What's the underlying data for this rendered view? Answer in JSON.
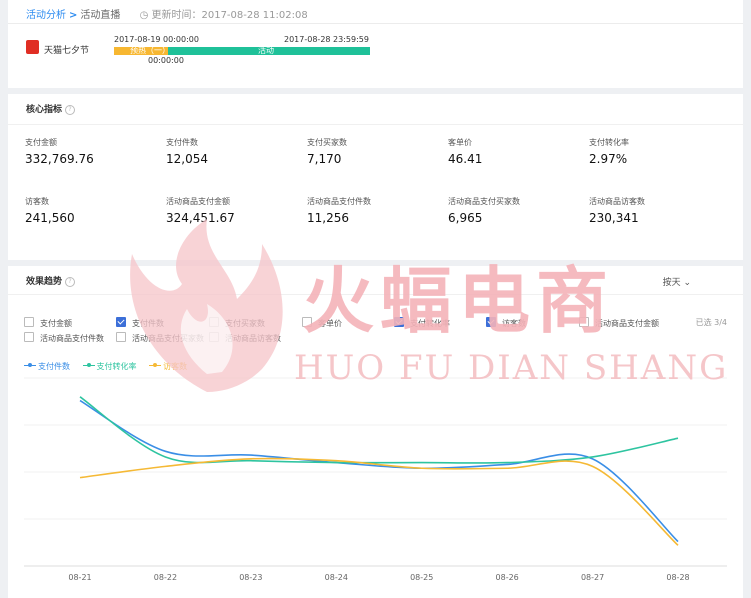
{
  "header": {
    "breadcrumb_root": "活动分析",
    "breadcrumb_separator": ">",
    "breadcrumb_current": "活动直播",
    "update_text": "更新时间：2017-08-28 11:02:08"
  },
  "event": {
    "name": "天猫七夕节",
    "start_date": "2017-08-19 00:00:00",
    "start_time_wrapped": "00:00:00",
    "end_time": "2017-08-28 23:59:59",
    "phase_pre_label": "预热（一）",
    "phase_main_label": "活动",
    "colors": {
      "pre": "#f7b731",
      "main": "#1fc199",
      "icon": "#e02e24"
    }
  },
  "core": {
    "title": "核心指标",
    "metrics": [
      {
        "label": "支付金额",
        "value": "332,769.76"
      },
      {
        "label": "支付件数",
        "value": "12,054"
      },
      {
        "label": "支付买家数",
        "value": "7,170"
      },
      {
        "label": "客单价",
        "value": "46.41"
      },
      {
        "label": "支付转化率",
        "value": "2.97%"
      },
      {
        "label": "访客数",
        "value": "241,560"
      },
      {
        "label": "活动商品支付金额",
        "value": "324,451.67"
      },
      {
        "label": "活动商品支付件数",
        "value": "11,256"
      },
      {
        "label": "活动商品支付买家数",
        "value": "6,965"
      },
      {
        "label": "活动商品访客数",
        "value": "230,341"
      }
    ]
  },
  "trend": {
    "title": "效果趋势",
    "granularity": "按天",
    "selected_count": "已选 3/4",
    "options": [
      {
        "label": "支付金额",
        "checked": false
      },
      {
        "label": "支付件数",
        "checked": true
      },
      {
        "label": "支付买家数",
        "checked": false
      },
      {
        "label": "客单价",
        "checked": false
      },
      {
        "label": "支付转化率",
        "checked": true
      },
      {
        "label": "访客数",
        "checked": true
      },
      {
        "label": "活动商品支付金额",
        "checked": false
      },
      {
        "label": "活动商品支付件数",
        "checked": false
      },
      {
        "label": "活动商品支付买家数",
        "checked": false
      },
      {
        "label": "活动商品访客数",
        "checked": false
      }
    ]
  },
  "chart_data": {
    "type": "line",
    "categories": [
      "08-21",
      "08-22",
      "08-23",
      "08-24",
      "08-25",
      "08-26",
      "08-27",
      "08-28"
    ],
    "grid": true,
    "legend_position": "top-left",
    "series": [
      {
        "name": "支付件数",
        "color": "#3a8ee6",
        "values": [
          88,
          61,
          59,
          55,
          52,
          54,
          57,
          13
        ]
      },
      {
        "name": "支付转化率",
        "color": "#2ec4a0",
        "values": [
          90,
          58,
          56,
          55,
          55,
          55,
          58,
          68
        ]
      },
      {
        "name": "访客数",
        "color": "#f5b935",
        "values": [
          47,
          53,
          57,
          56,
          52,
          52,
          53,
          11
        ]
      }
    ]
  },
  "watermark": {
    "text": "火蝠电商",
    "subtitle": "HUO FU DIAN SHANG",
    "color": "#f4b3b9"
  }
}
